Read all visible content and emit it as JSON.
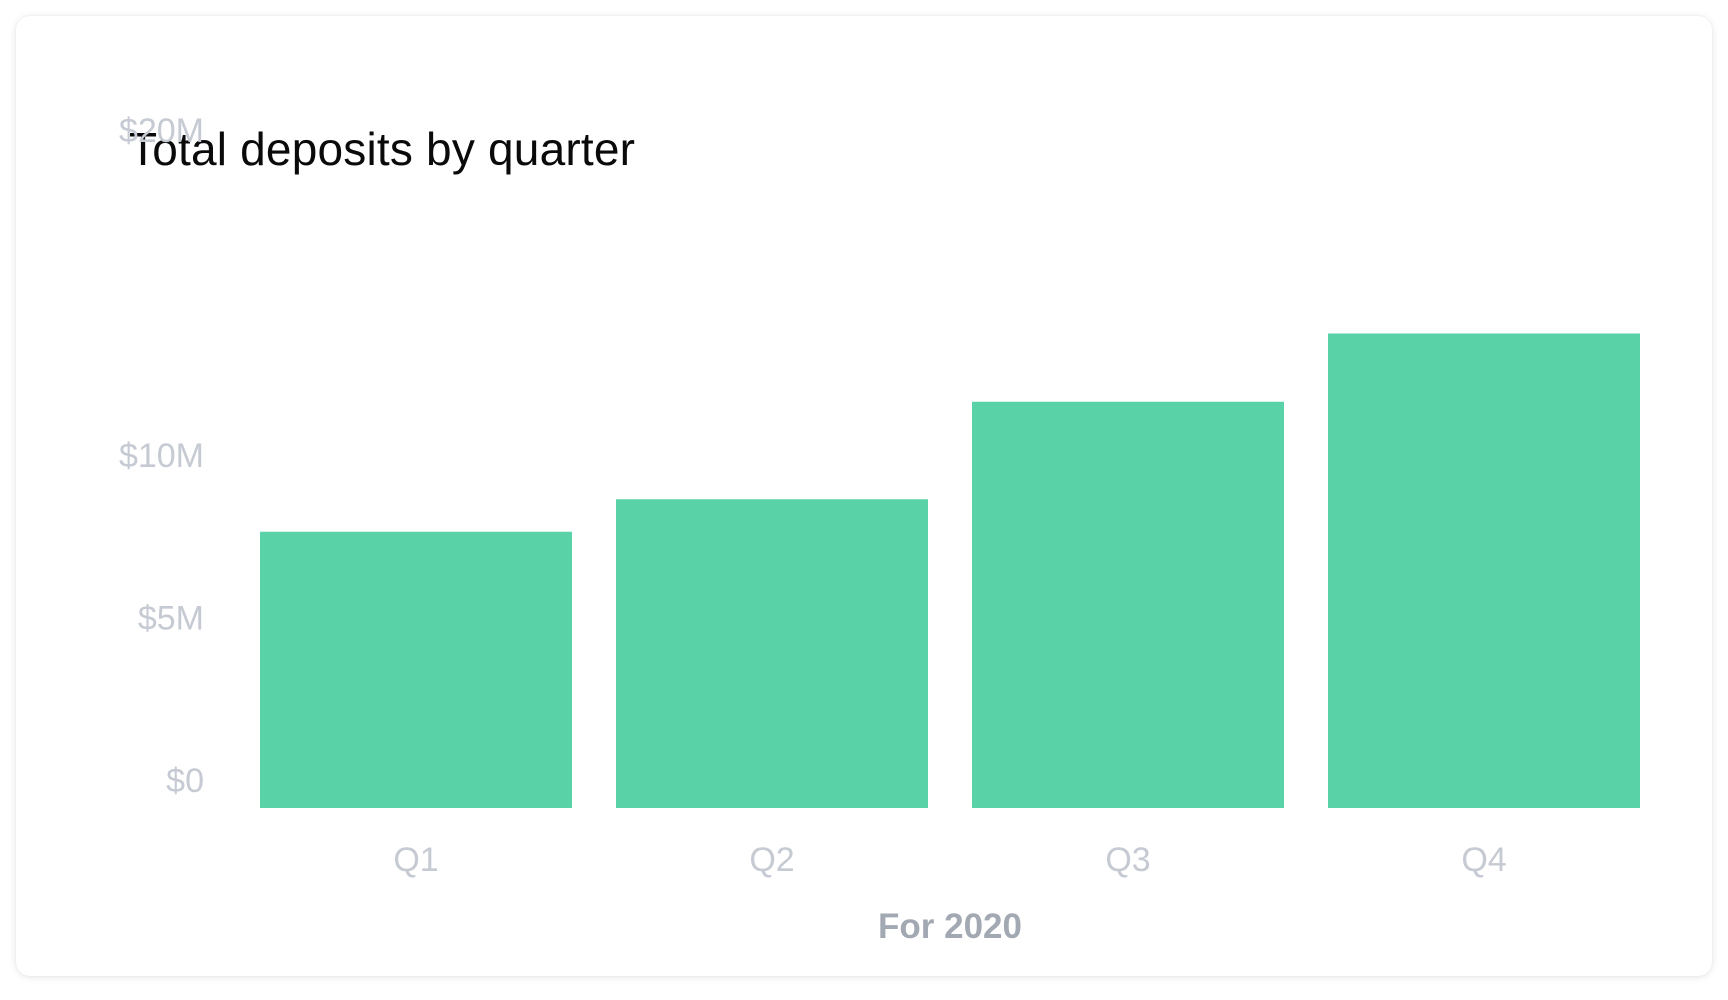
{
  "chart_data": {
    "type": "bar",
    "title": "Total deposits by quarter",
    "xlabel": "For 2020",
    "ylabel": "",
    "categories": [
      "Q1",
      "Q2",
      "Q3",
      "Q4"
    ],
    "values": [
      8.5,
      9.5,
      12.5,
      14.6
    ],
    "yticks": [
      {
        "value": 0,
        "label": "$0"
      },
      {
        "value": 5,
        "label": "$5M"
      },
      {
        "value": 10,
        "label": "$10M"
      },
      {
        "value": 20,
        "label": "$20M"
      }
    ],
    "ylim": [
      0,
      20
    ],
    "grid": false,
    "bar_color": "#59d2a8"
  }
}
